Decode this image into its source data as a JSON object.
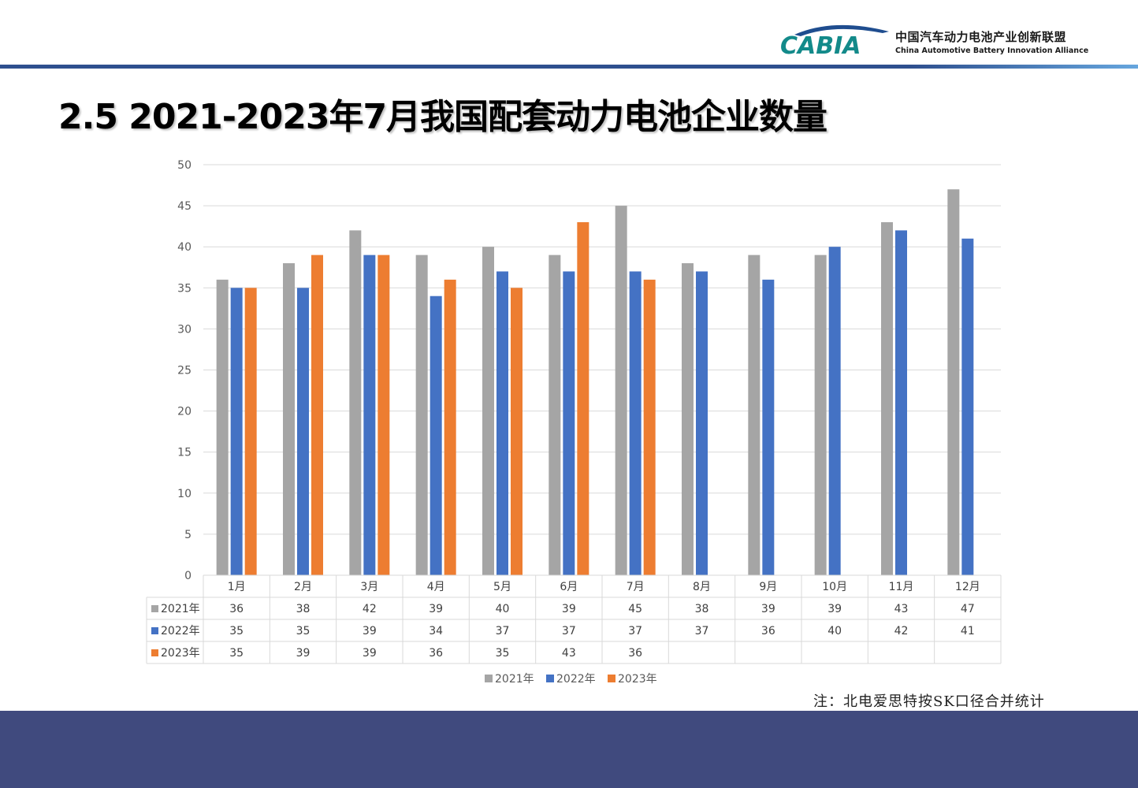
{
  "header": {
    "logo_text": "CABIA",
    "org_name_cn": "中国汽车动力电池产业创新联盟",
    "org_name_en": "China Automotive Battery Innovation Alliance",
    "line_color": "#2e4f8e"
  },
  "page_title": "2.5 2021-2023年7月我国配套动力电池企业数量",
  "note": "注：北电爱思特按SK口径合并统计",
  "chart_data": {
    "type": "bar",
    "title": "",
    "xlabel": "",
    "ylabel": "",
    "ylim": [
      0,
      50
    ],
    "yticks": [
      0,
      5,
      10,
      15,
      20,
      25,
      30,
      35,
      40,
      45,
      50
    ],
    "grid": true,
    "legend_position": "bottom",
    "has_data_table": true,
    "categories": [
      "1月",
      "2月",
      "3月",
      "4月",
      "5月",
      "6月",
      "7月",
      "8月",
      "9月",
      "10月",
      "11月",
      "12月"
    ],
    "series": [
      {
        "name": "2021年",
        "color": "#a5a5a5",
        "values": [
          36,
          38,
          42,
          39,
          40,
          39,
          45,
          38,
          39,
          39,
          43,
          47
        ]
      },
      {
        "name": "2022年",
        "color": "#4472c4",
        "values": [
          35,
          35,
          39,
          34,
          37,
          37,
          37,
          37,
          36,
          40,
          42,
          41
        ]
      },
      {
        "name": "2023年",
        "color": "#ed7d31",
        "values": [
          35,
          39,
          39,
          36,
          35,
          43,
          36,
          null,
          null,
          null,
          null,
          null
        ]
      }
    ]
  }
}
